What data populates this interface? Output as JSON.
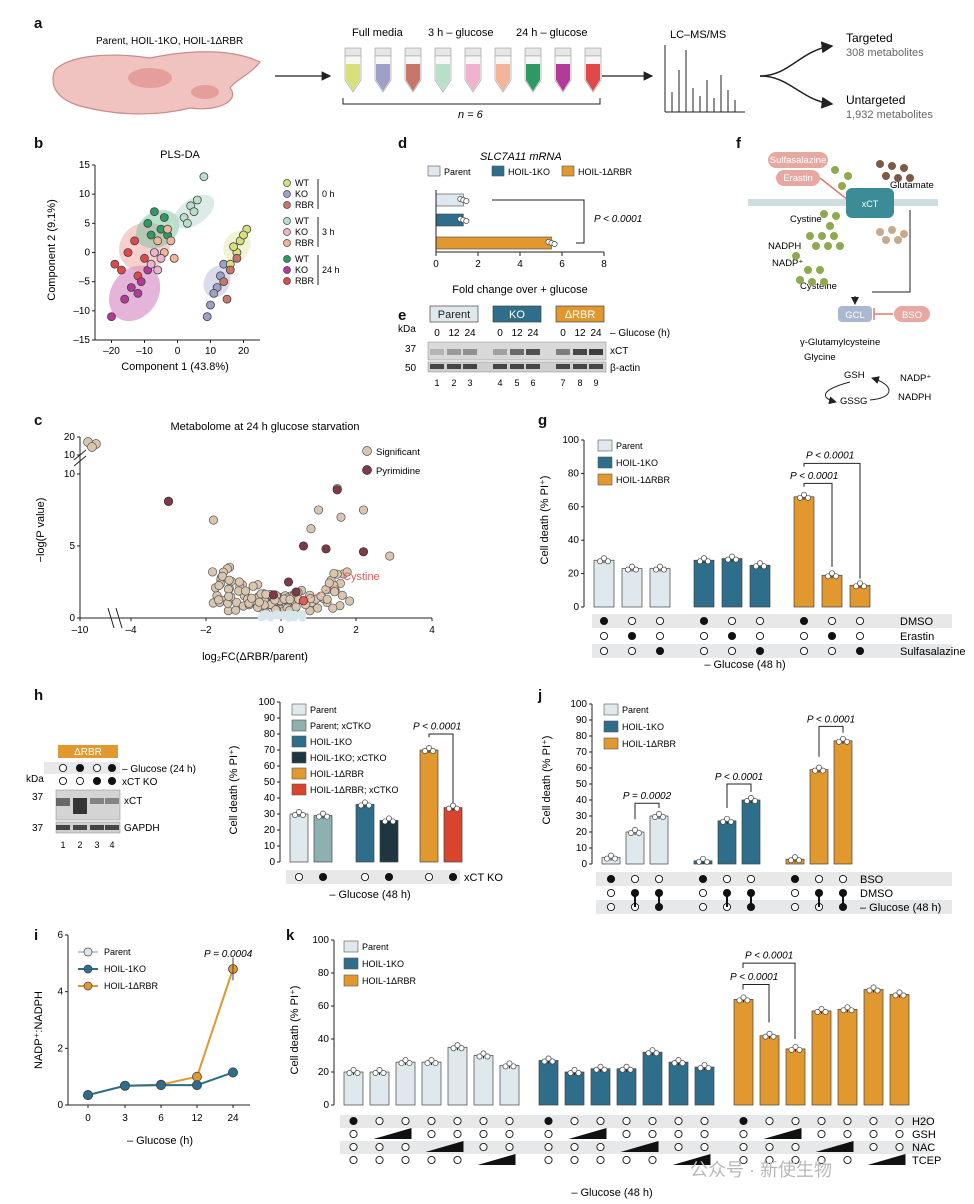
{
  "colors": {
    "parent": "#dfe8ec",
    "ko": "#2e6e8a",
    "rbr": "#e0982f",
    "sig": "#d9c6b0",
    "pyr": "#7d3b4a",
    "cystine": "#e85a5a",
    "parent_xct": "#8fb0b0",
    "ko_xct": "#1d3640",
    "rbr_xct": "#d9442c"
  },
  "a": {
    "label": "a",
    "cells": "Parent, HOIL-1KO, HOIL-1ΔRBR",
    "conds": [
      "Full media",
      "3 h – glucose",
      "24 h – glucose"
    ],
    "n": "n = 6",
    "ms": "LC–MS/MS",
    "targeted": "Targeted",
    "targeted_n": "308 metabolites",
    "untargeted": "Untargeted",
    "untargeted_n": "1,932 metabolites",
    "tube_colors": [
      "#d7e07a",
      "#9fa0c8",
      "#c7766c",
      "#b8dfc7",
      "#efb2cf",
      "#f2b59a",
      "#2d9a62",
      "#b3399a",
      "#e34848"
    ]
  },
  "b": {
    "label": "b",
    "chart_data": {
      "type": "scatter",
      "title": "PLS-DA",
      "xlabel": "Component 1 (43.8%)",
      "ylabel": "Component 2 (9.1%)",
      "xlim": [
        -25,
        25
      ],
      "ylim": [
        -15,
        15
      ],
      "xticks": [
        "–20",
        "–10",
        "0",
        "10",
        "20"
      ],
      "yticks": [
        "–15",
        "–10",
        "–5",
        "0",
        "5",
        "10",
        "15"
      ],
      "legend_groups": [
        {
          "time": "0 h",
          "items": [
            "WT",
            "KO",
            "RBR"
          ]
        },
        {
          "time": "3 h",
          "items": [
            "WT",
            "KO",
            "RBR"
          ]
        },
        {
          "time": "24 h",
          "items": [
            "WT",
            "KO",
            "RBR"
          ]
        }
      ]
    }
  },
  "c": {
    "label": "c",
    "chart_data": {
      "type": "scatter",
      "title": "Metabolome at 24 h glucose starvation",
      "xlabel": "log₂FC(ΔRBR/parent)",
      "ylabel": "−log(P value)",
      "xticks": [
        "–10",
        "–4",
        "–2",
        "0",
        "2",
        "4"
      ],
      "yticks": [
        "0",
        "5",
        "10",
        "10",
        "20"
      ],
      "legend": [
        "Significant",
        "Pyrimidine"
      ],
      "annotation": "Cystine"
    }
  },
  "d": {
    "label": "d",
    "title": "SLC7A11 mRNA",
    "chart_data": {
      "type": "bar",
      "categories": [
        "Parent",
        "HOIL-1KO",
        "HOIL-1ΔRBR"
      ],
      "values": [
        1.3,
        1.3,
        5.5
      ],
      "xlabel": "Fold change over + glucose",
      "xticks": [
        "0",
        "2",
        "4",
        "6",
        "8"
      ],
      "pval": "P < 0.0001"
    }
  },
  "e": {
    "label": "e",
    "groups": [
      "Parent",
      "KO",
      "ΔRBR"
    ],
    "kda": "kDa",
    "times": [
      "0",
      "12",
      "24",
      "0",
      "12",
      "24",
      "0",
      "12",
      "24"
    ],
    "glucose": "– Glucose (h)",
    "mw": [
      "37",
      "50"
    ],
    "bands": [
      "xCT",
      "β-actin"
    ],
    "lanes": [
      "1",
      "2",
      "3",
      "4",
      "5",
      "6",
      "7",
      "8",
      "9"
    ]
  },
  "f": {
    "label": "f",
    "sulfasalazine": "Sulfasalazine",
    "erastin": "Erastin",
    "xct": "xCT",
    "glutamate": "Glutamate",
    "cystine": "Cystine",
    "nadph": "NADPH",
    "nadp": "NADP⁺",
    "cysteine": "Cysteine",
    "gcl": "GCL",
    "bso": "BSO",
    "gglu": "γ-Glutamylcysteine",
    "glycine": "Glycine",
    "gsh": "GSH",
    "gssg": "GSSG",
    "nadp2": "NADP⁺",
    "nadph2": "NADPH"
  },
  "g": {
    "label": "g",
    "chart_data": {
      "type": "bar",
      "ylabel": "Cell death (% PI⁺)",
      "ylim": [
        0,
        100
      ],
      "yticks": [
        "0",
        "20",
        "40",
        "60",
        "80",
        "100"
      ],
      "legend": [
        "Parent",
        "HOIL-1KO",
        "HOIL-1ΔRBR"
      ],
      "groups": [
        [
          28,
          23,
          23
        ],
        [
          28,
          29,
          25
        ],
        [
          66,
          19,
          13
        ]
      ],
      "pvals": [
        "P < 0.0001",
        "P < 0.0001"
      ],
      "rows": [
        "DMSO",
        "Erastin",
        "Sulfasalazine"
      ],
      "footer": "– Glucose (48 h)"
    }
  },
  "h": {
    "label": "h",
    "blot_header": "ΔRBR",
    "blot_rows": [
      "– Glucose (24 h)",
      "xCT KO"
    ],
    "kda": "kDa",
    "mw": [
      "37",
      "37"
    ],
    "bands": [
      "xCT",
      "GAPDH"
    ],
    "lanes": [
      "1",
      "2",
      "3",
      "4"
    ],
    "chart_data": {
      "type": "bar",
      "ylabel": "Cell death (% PI⁺)",
      "ylim": [
        0,
        100
      ],
      "yticks": [
        "0",
        "10",
        "20",
        "30",
        "40",
        "50",
        "60",
        "70",
        "80",
        "90",
        "100"
      ],
      "legend": [
        "Parent",
        "Parent; xCTKO",
        "HOIL-1KO",
        "HOIL-1KO; xCTKO",
        "HOIL-1ΔRBR",
        "HOIL-1ΔRBR; xCTKO"
      ],
      "values": [
        30,
        29,
        36,
        26,
        70,
        34
      ],
      "pval": "P < 0.0001",
      "row": "xCT KO",
      "footer": "– Glucose (48 h)"
    }
  },
  "i": {
    "label": "i",
    "chart_data": {
      "type": "line",
      "ylabel": "NADP⁺:NADPH",
      "xlabel": "– Glucose (h)",
      "x": [
        "0",
        "3",
        "6",
        "12",
        "24"
      ],
      "ylim": [
        0,
        6
      ],
      "yticks": [
        "0",
        "2",
        "4",
        "6"
      ],
      "series": [
        {
          "name": "Parent",
          "values": [
            0.35,
            0.68,
            0.7,
            0.7,
            1.15
          ]
        },
        {
          "name": "HOIL-1KO",
          "values": [
            0.35,
            0.68,
            0.7,
            0.7,
            1.15
          ]
        },
        {
          "name": "HOIL-1ΔRBR",
          "values": [
            0.35,
            0.68,
            0.72,
            1.0,
            4.8
          ]
        }
      ],
      "pval": "P = 0.0004"
    }
  },
  "j": {
    "label": "j",
    "chart_data": {
      "type": "bar",
      "ylabel": "Cell death (% PI⁺)",
      "ylim": [
        0,
        100
      ],
      "yticks": [
        "0",
        "10",
        "20",
        "30",
        "40",
        "50",
        "60",
        "70",
        "80",
        "90",
        "100"
      ],
      "legend": [
        "Parent",
        "HOIL-1KO",
        "HOIL-1ΔRBR"
      ],
      "groups": [
        [
          4,
          20,
          30
        ],
        [
          2,
          27,
          40
        ],
        [
          3,
          59,
          77
        ]
      ],
      "pvals": [
        "P = 0.0002",
        "P < 0.0001",
        "P < 0.0001"
      ],
      "rows": [
        "BSO",
        "DMSO",
        "– Glucose (48 h)"
      ]
    }
  },
  "k": {
    "label": "k",
    "chart_data": {
      "type": "bar",
      "ylabel": "Cell death (% PI⁺)",
      "ylim": [
        0,
        100
      ],
      "yticks": [
        "0",
        "20",
        "40",
        "60",
        "80",
        "100"
      ],
      "legend": [
        "Parent",
        "HOIL-1KO",
        "HOIL-1ΔRBR"
      ],
      "groups": [
        [
          20,
          20,
          26,
          26,
          35,
          30,
          24
        ],
        [
          27,
          20,
          22,
          22,
          32,
          26,
          23
        ],
        [
          64,
          42,
          34,
          57,
          58,
          70,
          67
        ]
      ],
      "pvals": [
        "P < 0.0001",
        "P < 0.0001"
      ],
      "rows": [
        "H2O",
        "GSH",
        "NAC",
        "TCEP"
      ],
      "footer": "– Glucose (48 h)"
    }
  },
  "watermark": "公众号 · 新使生物"
}
